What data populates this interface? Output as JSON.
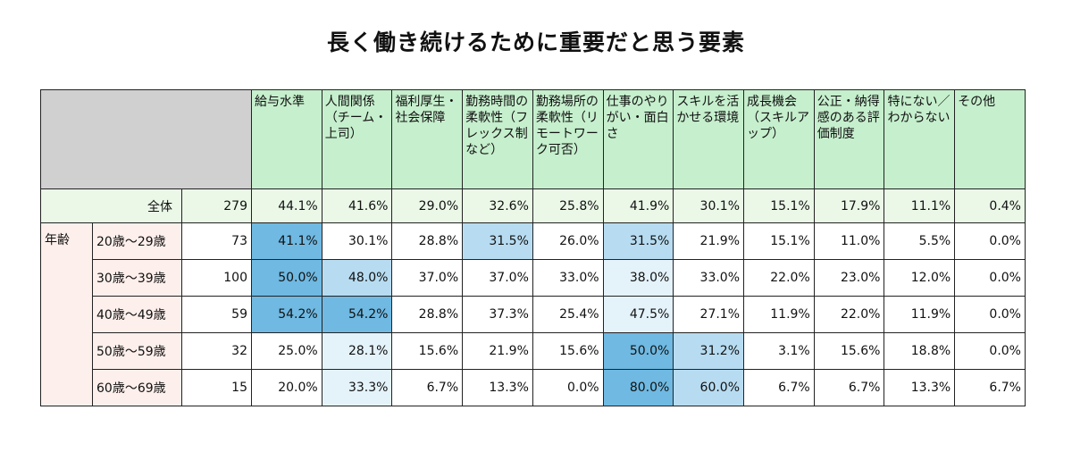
{
  "title": "長く働き続けるために重要だと思う要素",
  "chart_data": {
    "type": "table",
    "title": "長く働き続けるために重要だと思う要素",
    "columns": [
      "給与水準",
      "人間関係（チーム・上司）",
      "福利厚生・社会保障",
      "勤務時間の柔軟性（フレックス制など）",
      "勤務場所の柔軟性（リモートワーク可否）",
      "仕事のやりがい・面白さ",
      "スキルを活かせる環境",
      "成長機会（スキルアップ）",
      "公正・納得感のある評価制度",
      "特にない／わからない",
      "その他"
    ],
    "group_label": "年齢",
    "highlight_colors": {
      "1": "#6fb9e2",
      "2": "#b7dcf1",
      "3": "#e4f2fa"
    },
    "rows": [
      {
        "label": "全体",
        "n": "279",
        "values": [
          "44.1%",
          "41.6%",
          "29.0%",
          "32.6%",
          "25.8%",
          "41.9%",
          "30.1%",
          "15.1%",
          "17.9%",
          "11.1%",
          "0.4%"
        ],
        "levels": [
          0,
          0,
          0,
          0,
          0,
          0,
          0,
          0,
          0,
          0,
          0
        ]
      },
      {
        "label": "20歳～29歳",
        "n": "73",
        "values": [
          "41.1%",
          "30.1%",
          "28.8%",
          "31.5%",
          "26.0%",
          "31.5%",
          "21.9%",
          "15.1%",
          "11.0%",
          "5.5%",
          "0.0%"
        ],
        "levels": [
          1,
          0,
          0,
          2,
          0,
          2,
          0,
          0,
          0,
          0,
          0
        ]
      },
      {
        "label": "30歳～39歳",
        "n": "100",
        "values": [
          "50.0%",
          "48.0%",
          "37.0%",
          "37.0%",
          "33.0%",
          "38.0%",
          "33.0%",
          "22.0%",
          "23.0%",
          "12.0%",
          "0.0%"
        ],
        "levels": [
          1,
          2,
          0,
          0,
          0,
          3,
          0,
          0,
          0,
          0,
          0
        ]
      },
      {
        "label": "40歳～49歳",
        "n": "59",
        "values": [
          "54.2%",
          "54.2%",
          "28.8%",
          "37.3%",
          "25.4%",
          "47.5%",
          "27.1%",
          "11.9%",
          "22.0%",
          "11.9%",
          "0.0%"
        ],
        "levels": [
          1,
          1,
          0,
          0,
          0,
          3,
          0,
          0,
          0,
          0,
          0
        ]
      },
      {
        "label": "50歳～59歳",
        "n": "32",
        "values": [
          "25.0%",
          "28.1%",
          "15.6%",
          "21.9%",
          "15.6%",
          "50.0%",
          "31.2%",
          "3.1%",
          "15.6%",
          "18.8%",
          "0.0%"
        ],
        "levels": [
          0,
          3,
          0,
          0,
          0,
          1,
          2,
          0,
          0,
          0,
          0
        ]
      },
      {
        "label": "60歳～69歳",
        "n": "15",
        "values": [
          "20.0%",
          "33.3%",
          "6.7%",
          "13.3%",
          "0.0%",
          "80.0%",
          "60.0%",
          "6.7%",
          "6.7%",
          "13.3%",
          "6.7%"
        ],
        "levels": [
          0,
          3,
          0,
          0,
          0,
          1,
          2,
          0,
          0,
          0,
          0
        ]
      }
    ]
  }
}
